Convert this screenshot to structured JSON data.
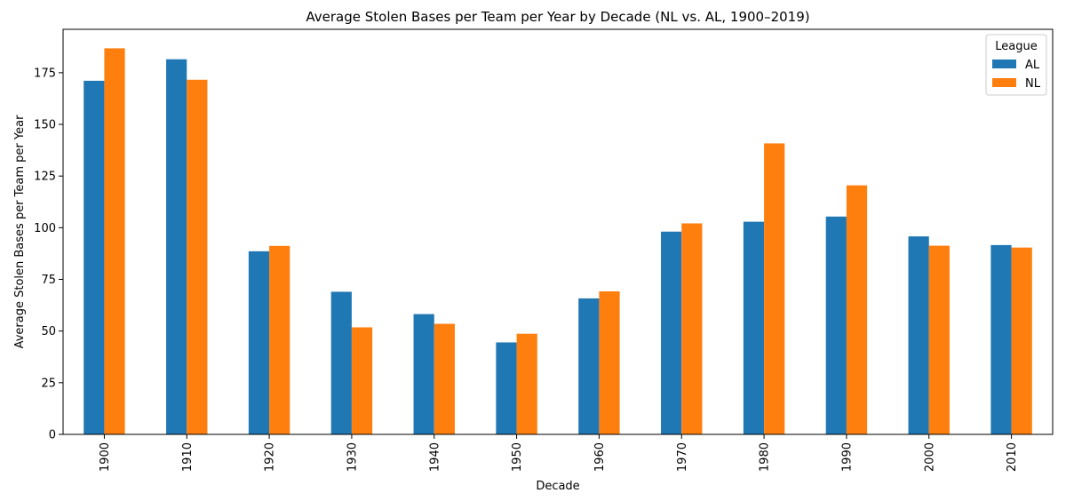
{
  "chart_data": {
    "type": "bar",
    "title": "Average Stolen Bases per Team per Year by Decade (NL vs. AL, 1900–2019)",
    "xlabel": "Decade",
    "ylabel": "Average Stolen Bases per Team per Year",
    "categories": [
      "1900",
      "1910",
      "1920",
      "1930",
      "1940",
      "1950",
      "1960",
      "1970",
      "1980",
      "1990",
      "2000",
      "2010"
    ],
    "series": [
      {
        "name": "AL",
        "color": "#1f77b4",
        "values": [
          171.1,
          181.5,
          88.6,
          69.0,
          58.2,
          44.5,
          65.8,
          98.1,
          102.9,
          105.4,
          95.8,
          91.6
        ]
      },
      {
        "name": "NL",
        "color": "#ff7f0e",
        "values": [
          186.8,
          171.6,
          91.2,
          51.8,
          53.5,
          48.7,
          69.2,
          102.1,
          140.8,
          120.5,
          91.3,
          90.4
        ]
      }
    ],
    "ylim": [
      0,
      196
    ],
    "yticks": [
      0,
      25,
      50,
      75,
      100,
      125,
      150,
      175
    ],
    "grid": false,
    "legend": {
      "title": "League",
      "position": "top-right"
    }
  }
}
